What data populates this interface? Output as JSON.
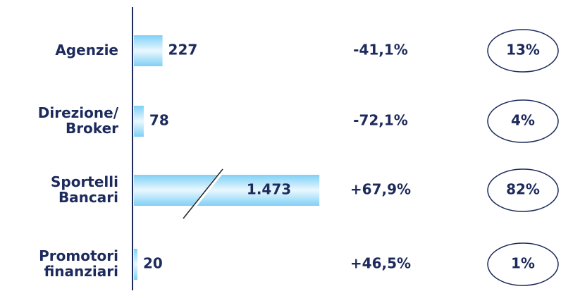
{
  "chart_data": {
    "type": "bar",
    "orientation": "horizontal",
    "categories": [
      "Agenzie",
      "Direzione/ Broker",
      "Sportelli Bancari",
      "Promotori finanziari"
    ],
    "values": [
      227,
      78,
      1473,
      20
    ],
    "value_labels": [
      "227",
      "78",
      "1.473",
      "20"
    ],
    "changes": [
      "-41,1%",
      "-72,1%",
      "+67,9%",
      "+46,5%"
    ],
    "shares": [
      "13%",
      "4%",
      "82%",
      "1%"
    ],
    "color": "#7fd0f5",
    "xlim": [
      0,
      1500
    ]
  }
}
